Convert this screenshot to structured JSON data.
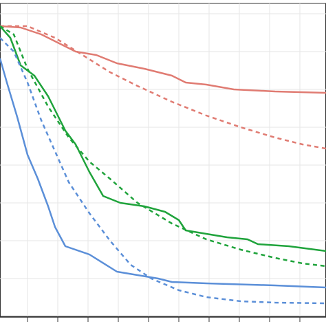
{
  "chart_data": {
    "type": "line",
    "grid": true,
    "xlim": [
      0,
      474
    ],
    "xticks": [
      40,
      84,
      128,
      172,
      216,
      260,
      304,
      348,
      392,
      436
    ],
    "ylim": [
      0,
      455
    ],
    "yticks": [
      55,
      110,
      165,
      220,
      275,
      330,
      385,
      440
    ],
    "series": [
      {
        "color": "#e07b72",
        "dash": false,
        "x": [
          0,
          30,
          60,
          90,
          110,
          140,
          170,
          210,
          250,
          270,
          300,
          340,
          400,
          474
        ],
        "values": [
          422,
          420,
          410,
          395,
          385,
          380,
          368,
          360,
          350,
          340,
          337,
          330,
          327,
          325
        ]
      },
      {
        "color": "#e07b72",
        "dash": true,
        "x": [
          0,
          40,
          80,
          120,
          160,
          200,
          250,
          300,
          350,
          400,
          440,
          474
        ],
        "values": [
          422,
          422,
          405,
          380,
          355,
          335,
          312,
          292,
          275,
          260,
          250,
          244
        ]
      },
      {
        "color": "#1fa33b",
        "dash": false,
        "x": [
          0,
          15,
          30,
          50,
          70,
          95,
          110,
          130,
          150,
          175,
          210,
          240,
          260,
          270,
          300,
          330,
          360,
          375,
          420,
          474
        ],
        "values": [
          422,
          405,
          365,
          350,
          320,
          270,
          250,
          210,
          175,
          165,
          160,
          152,
          140,
          125,
          120,
          115,
          112,
          105,
          102,
          95
        ]
      },
      {
        "color": "#1fa33b",
        "dash": true,
        "x": [
          0,
          20,
          40,
          70,
          100,
          130,
          160,
          200,
          250,
          300,
          350,
          400,
          440,
          474
        ],
        "values": [
          422,
          410,
          360,
          305,
          260,
          225,
          200,
          165,
          135,
          112,
          97,
          85,
          77,
          73
        ]
      },
      {
        "color": "#5b8fd8",
        "dash": false,
        "x": [
          0,
          10,
          25,
          40,
          55,
          70,
          80,
          95,
          130,
          170,
          200,
          230,
          250,
          300,
          400,
          474
        ],
        "values": [
          375,
          340,
          290,
          235,
          200,
          160,
          130,
          102,
          90,
          65,
          60,
          55,
          50,
          48,
          45,
          42
        ]
      },
      {
        "color": "#5b8fd8",
        "dash": true,
        "x": [
          0,
          20,
          40,
          60,
          80,
          100,
          130,
          160,
          190,
          220,
          260,
          300,
          350,
          400,
          474
        ],
        "values": [
          405,
          385,
          340,
          285,
          240,
          195,
          150,
          110,
          75,
          55,
          38,
          28,
          22,
          20,
          19
        ]
      }
    ]
  }
}
